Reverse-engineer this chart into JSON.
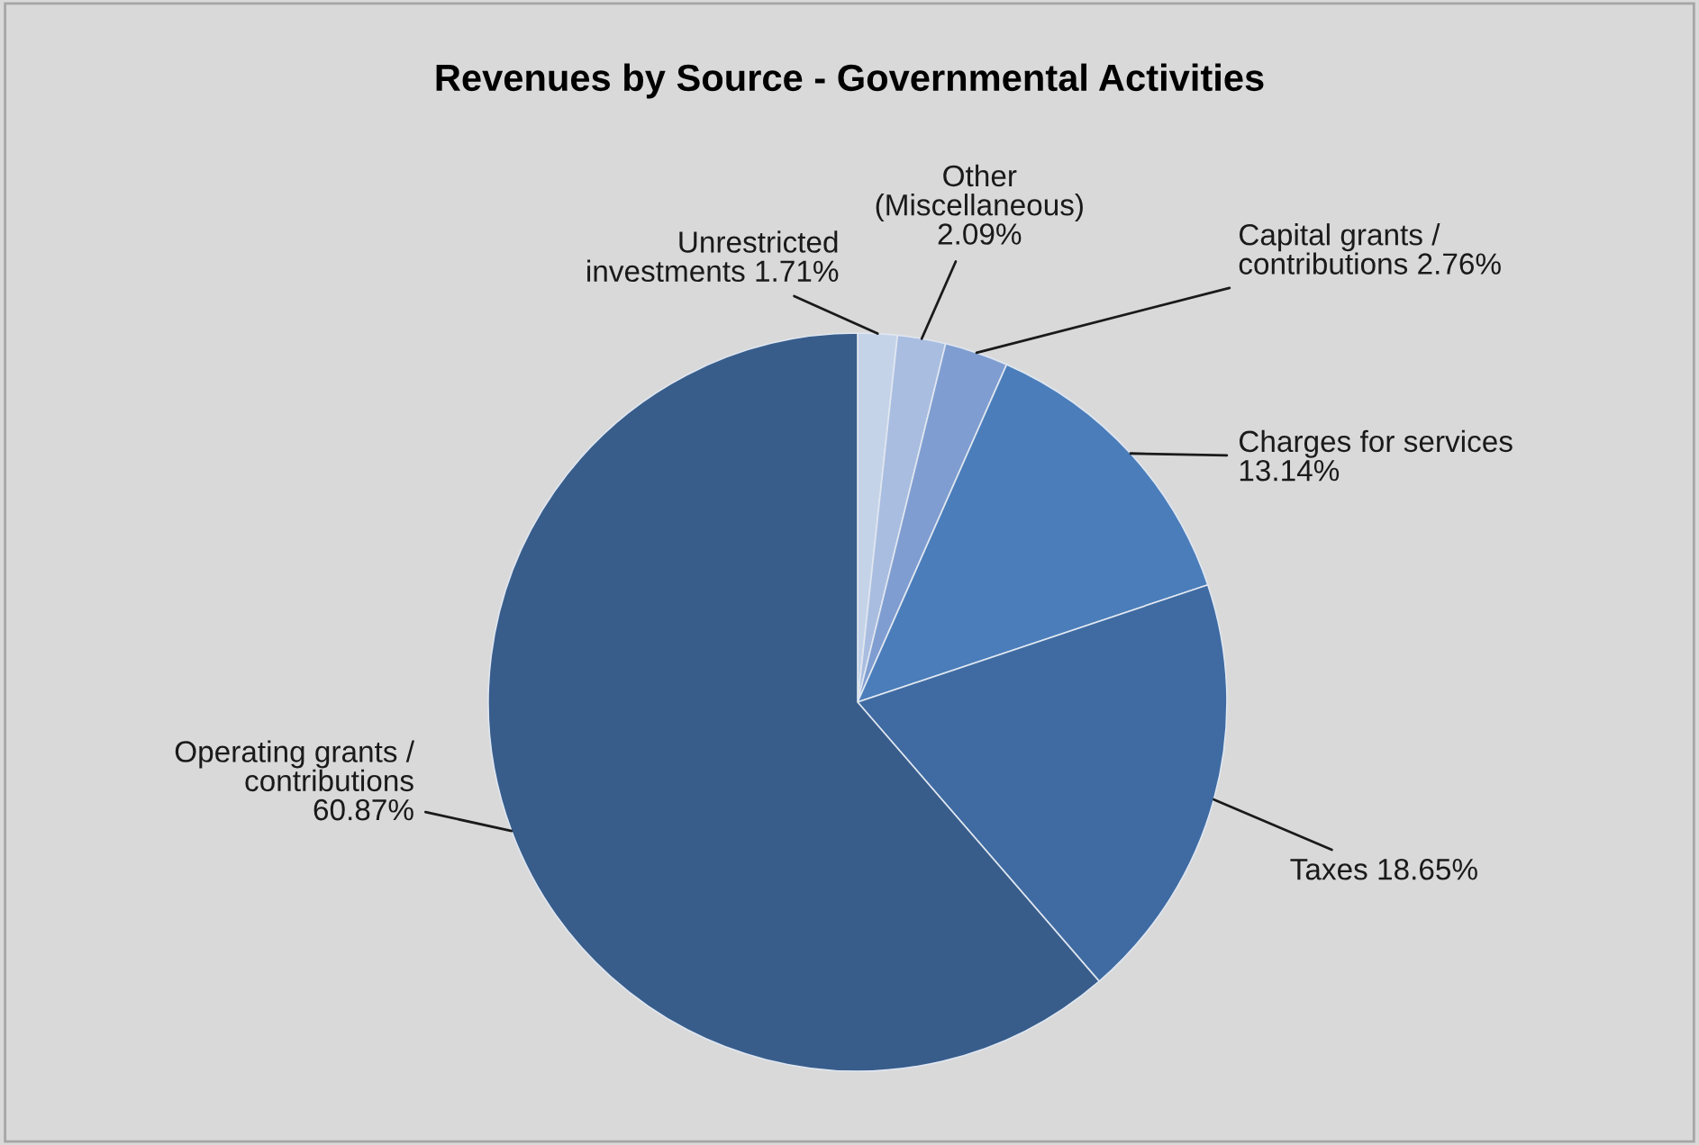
{
  "chart_data": {
    "type": "pie",
    "title": "Revenues by Source - Governmental Activities",
    "categories": [
      "Unrestricted\ninvestments",
      "Other\n(Miscellaneous)",
      "Capital grants /\ncontributions",
      "Charges for services",
      "Taxes",
      "Operating grants /\ncontributions"
    ],
    "values": [
      1.71,
      2.09,
      2.76,
      13.14,
      18.65,
      60.87
    ],
    "value_labels": [
      "1.71%",
      "2.09%",
      "2.76%",
      "13.14%",
      "18.65%",
      "60.87%"
    ],
    "colors": [
      "#c5d3e9",
      "#a9bde0",
      "#7f9dd0",
      "#4a7dba",
      "#3f6ba2",
      "#385d8b"
    ],
    "legend": false
  }
}
